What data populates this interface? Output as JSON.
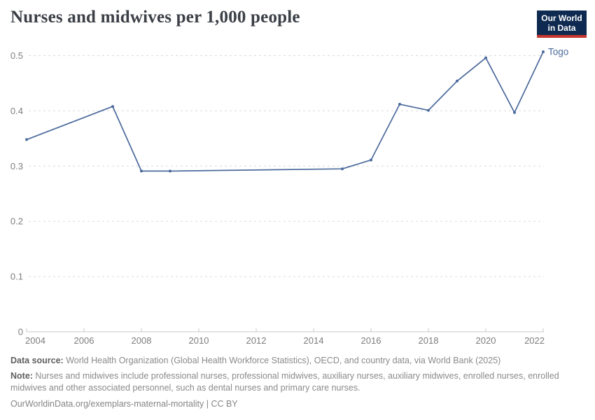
{
  "header": {
    "title": "Nurses and midwives per 1,000 people",
    "logo": {
      "line1": "Our World",
      "line2": "in Data",
      "bg_color": "#0e2a51",
      "stripe_color": "#c5362f"
    }
  },
  "chart_data": {
    "type": "line",
    "title": "Nurses and midwives per 1,000 people",
    "xlabel": "",
    "ylabel": "",
    "ylim": [
      0,
      0.52
    ],
    "xlim": [
      2004,
      2022
    ],
    "grid": "horizontal-dashed",
    "legend_position": "end-of-line-label",
    "line_color": "#4c6a9c",
    "axis_color": "#c8c8c8",
    "grid_color": "#dadada",
    "tick_label_color": "#7d7d7d",
    "y_ticks": [
      {
        "v": 0,
        "label": "0"
      },
      {
        "v": 0.1,
        "label": "0.1"
      },
      {
        "v": 0.2,
        "label": "0.2"
      },
      {
        "v": 0.3,
        "label": "0.3"
      },
      {
        "v": 0.4,
        "label": "0.4"
      },
      {
        "v": 0.5,
        "label": "0.5"
      }
    ],
    "x_ticks": [
      {
        "v": 2004,
        "label": "2004"
      },
      {
        "v": 2006,
        "label": "2006"
      },
      {
        "v": 2008,
        "label": "2008"
      },
      {
        "v": 2010,
        "label": "2010"
      },
      {
        "v": 2012,
        "label": "2012"
      },
      {
        "v": 2014,
        "label": "2014"
      },
      {
        "v": 2016,
        "label": "2016"
      },
      {
        "v": 2018,
        "label": "2018"
      },
      {
        "v": 2020,
        "label": "2020"
      },
      {
        "v": 2022,
        "label": "2022"
      }
    ],
    "series": [
      {
        "name": "Togo",
        "color": "#4c6a9c",
        "points": [
          {
            "year": 2004,
            "value": 0.348
          },
          {
            "year": 2007,
            "value": 0.408
          },
          {
            "year": 2008,
            "value": 0.291
          },
          {
            "year": 2009,
            "value": 0.291
          },
          {
            "year": 2015,
            "value": 0.295
          },
          {
            "year": 2016,
            "value": 0.311
          },
          {
            "year": 2017,
            "value": 0.412
          },
          {
            "year": 2018,
            "value": 0.401
          },
          {
            "year": 2019,
            "value": 0.454
          },
          {
            "year": 2020,
            "value": 0.496
          },
          {
            "year": 2021,
            "value": 0.397
          },
          {
            "year": 2022,
            "value": 0.507
          }
        ]
      }
    ]
  },
  "footer": {
    "source_label": "Data source:",
    "source_text": " World Health Organization (Global Health Workforce Statistics), OECD, and country data, via World Bank (2025)",
    "note_label": "Note:",
    "note_text": " Nurses and midwives include professional nurses, professional midwives, auxiliary nurses, auxiliary midwives, enrolled nurses, enrolled midwives and other associated personnel, such as dental nurses and primary care nurses.",
    "url_text": "OurWorldinData.org/exemplars-maternal-mortality | CC BY"
  }
}
